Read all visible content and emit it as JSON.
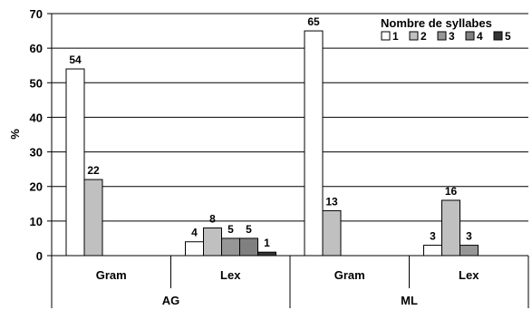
{
  "chart_data": {
    "type": "bar",
    "ylabel": "%",
    "ylim": [
      0,
      70
    ],
    "yticks": [
      0,
      10,
      20,
      30,
      40,
      50,
      60,
      70
    ],
    "grid": true,
    "legend": {
      "title": "Nombre de syllabes",
      "placement": "top-right",
      "entries": [
        "1",
        "2",
        "3",
        "4",
        "5"
      ]
    },
    "groups": [
      {
        "label": "AG",
        "subcategories": [
          "Gram",
          "Lex"
        ]
      },
      {
        "label": "ML",
        "subcategories": [
          "Gram",
          "Lex"
        ]
      }
    ],
    "categories": [
      "Gram",
      "Lex",
      "Gram",
      "Lex"
    ],
    "series": [
      {
        "name": "1",
        "color": "#ffffff",
        "values": [
          54,
          4,
          65,
          3
        ]
      },
      {
        "name": "2",
        "color": "#c0c0c0",
        "values": [
          22,
          8,
          13,
          16
        ]
      },
      {
        "name": "3",
        "color": "#969696",
        "values": [
          null,
          5,
          null,
          3
        ]
      },
      {
        "name": "4",
        "color": "#808080",
        "values": [
          null,
          5,
          null,
          null
        ]
      },
      {
        "name": "5",
        "color": "#333333",
        "values": [
          null,
          1,
          null,
          null
        ]
      }
    ]
  }
}
